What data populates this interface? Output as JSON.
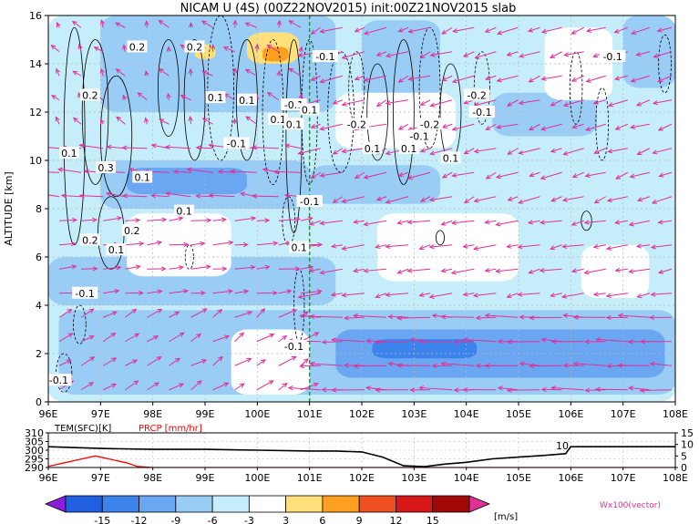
{
  "chart_data": [
    {
      "type": "heatmap",
      "title": "NICAM U (4S) (00Z22NOV2015) init:00Z21NOV2015 slab",
      "ylabel": "ALTITUDE [km]",
      "xlabel": "",
      "xlim": [
        96,
        108
      ],
      "ylim": [
        0,
        16
      ],
      "x_ticks": [
        "96E",
        "97E",
        "98E",
        "99E",
        "100E",
        "101E",
        "102E",
        "103E",
        "104E",
        "105E",
        "106E",
        "107E",
        "108E"
      ],
      "y_ticks": [
        "0",
        "2",
        "4",
        "6",
        "8",
        "10",
        "12",
        "14",
        "16"
      ],
      "grid": true,
      "marker_line_lon": 101.0,
      "shaded_regions": [
        {
          "lon": [
            96.0,
            108.0
          ],
          "alt": [
            0.0,
            16.0
          ],
          "value": -4.5
        },
        {
          "lon": [
            96.2,
            108.0
          ],
          "alt": [
            0.3,
            3.8
          ],
          "value": -7.5
        },
        {
          "lon": [
            101.5,
            107.8
          ],
          "alt": [
            1.0,
            3.0
          ],
          "value": -10.5
        },
        {
          "lon": [
            102.2,
            104.2
          ],
          "alt": [
            1.8,
            2.6
          ],
          "value": -13.5
        },
        {
          "lon": [
            96.0,
            101.5
          ],
          "alt": [
            4.0,
            6.0
          ],
          "value": -7.5
        },
        {
          "lon": [
            97.0,
            101.0
          ],
          "alt": [
            8.0,
            10.0
          ],
          "value": -7.5
        },
        {
          "lon": [
            97.5,
            99.8
          ],
          "alt": [
            8.6,
            9.7
          ],
          "value": -10.5
        },
        {
          "lon": [
            101.0,
            103.5
          ],
          "alt": [
            8.2,
            9.8
          ],
          "value": -7.5
        },
        {
          "lon": [
            97.0,
            101.5
          ],
          "alt": [
            12.0,
            16.0
          ],
          "value": -7.5
        },
        {
          "lon": [
            102.0,
            103.5
          ],
          "alt": [
            12.5,
            15.8
          ],
          "value": -7.5
        },
        {
          "lon": [
            104.5,
            106.5
          ],
          "alt": [
            11.0,
            12.8
          ],
          "value": -7.5
        },
        {
          "lon": [
            107.0,
            108.0
          ],
          "alt": [
            13.0,
            16.0
          ],
          "value": -7.5
        },
        {
          "lon": [
            97.5,
            99.5
          ],
          "alt": [
            5.2,
            7.8
          ],
          "value": 0.0
        },
        {
          "lon": [
            102.3,
            105.0
          ],
          "alt": [
            5.0,
            7.8
          ],
          "value": 0.0
        },
        {
          "lon": [
            106.2,
            107.5
          ],
          "alt": [
            4.3,
            6.5
          ],
          "value": 0.0
        },
        {
          "lon": [
            101.5,
            103.8
          ],
          "alt": [
            10.5,
            12.8
          ],
          "value": 0.0
        },
        {
          "lon": [
            105.5,
            106.8
          ],
          "alt": [
            12.5,
            15.5
          ],
          "value": 0.0
        },
        {
          "lon": [
            99.5,
            101.0
          ],
          "alt": [
            0.3,
            3.0
          ],
          "value": 0.0
        },
        {
          "lon": [
            98.8,
            99.2
          ],
          "alt": [
            14.2,
            14.8
          ],
          "value": 4.5
        },
        {
          "lon": [
            99.8,
            100.8
          ],
          "alt": [
            14.0,
            15.3
          ],
          "value": 4.5
        },
        {
          "lon": [
            100.1,
            100.6
          ],
          "alt": [
            14.1,
            14.7
          ],
          "value": 7.5
        }
      ],
      "contour_labels": [
        {
          "lon": 96.8,
          "alt": 12.7,
          "text": "0.2"
        },
        {
          "lon": 97.7,
          "alt": 14.7,
          "text": "0.2"
        },
        {
          "lon": 98.8,
          "alt": 14.7,
          "text": "0.2"
        },
        {
          "lon": 96.4,
          "alt": 10.3,
          "text": "0.1"
        },
        {
          "lon": 97.1,
          "alt": 9.7,
          "text": "0.3"
        },
        {
          "lon": 97.8,
          "alt": 9.3,
          "text": "0.1"
        },
        {
          "lon": 98.6,
          "alt": 7.9,
          "text": "0.1"
        },
        {
          "lon": 96.8,
          "alt": 6.7,
          "text": "0.2"
        },
        {
          "lon": 97.6,
          "alt": 7.1,
          "text": "0.2"
        },
        {
          "lon": 97.3,
          "alt": 6.3,
          "text": "0.1"
        },
        {
          "lon": 96.7,
          "alt": 4.5,
          "text": "-0.1"
        },
        {
          "lon": 96.2,
          "alt": 0.9,
          "text": "-0.1"
        },
        {
          "lon": 99.2,
          "alt": 12.6,
          "text": "0.1"
        },
        {
          "lon": 99.8,
          "alt": 12.5,
          "text": "0.1"
        },
        {
          "lon": 100.7,
          "alt": 12.3,
          "text": "-0.1"
        },
        {
          "lon": 100.4,
          "alt": 11.7,
          "text": "0.1"
        },
        {
          "lon": 99.6,
          "alt": 10.7,
          "text": "-0.1"
        },
        {
          "lon": 101.0,
          "alt": 12.1,
          "text": "0.1"
        },
        {
          "lon": 100.7,
          "alt": 11.5,
          "text": "0.1"
        },
        {
          "lon": 101.0,
          "alt": 8.3,
          "text": "-0.1"
        },
        {
          "lon": 100.8,
          "alt": 6.4,
          "text": "0.1"
        },
        {
          "lon": 100.7,
          "alt": 2.3,
          "text": "-0.1"
        },
        {
          "lon": 101.3,
          "alt": 14.3,
          "text": "-0.1"
        },
        {
          "lon": 101.9,
          "alt": 11.5,
          "text": "-0.2"
        },
        {
          "lon": 102.2,
          "alt": 10.5,
          "text": "0.1"
        },
        {
          "lon": 102.9,
          "alt": 10.5,
          "text": "0.1"
        },
        {
          "lon": 103.3,
          "alt": 11.5,
          "text": "-0.2"
        },
        {
          "lon": 103.1,
          "alt": 11.0,
          "text": "-0.1"
        },
        {
          "lon": 103.7,
          "alt": 10.1,
          "text": "0.1"
        },
        {
          "lon": 104.2,
          "alt": 12.7,
          "text": "-0.2"
        },
        {
          "lon": 104.3,
          "alt": 12.0,
          "text": "-0.1"
        },
        {
          "lon": 106.8,
          "alt": 14.3,
          "text": "-0.1"
        }
      ],
      "vectors": {
        "color": "#e0309a",
        "label": "Wx100(vector)",
        "spacing_lon": 0.42,
        "spacing_alt": 1.0,
        "regions": [
          {
            "lon": [
              96.0,
              101.0
            ],
            "alt": [
              0.0,
              4.0
            ],
            "u": 0.4,
            "w": 1.0,
            "scale": 1.2
          },
          {
            "lon": [
              96.0,
              101.0
            ],
            "alt": [
              4.0,
              8.0
            ],
            "u": 0.7,
            "w": 0.3,
            "scale": 0.9
          },
          {
            "lon": [
              96.0,
              101.0
            ],
            "alt": [
              8.0,
              11.0
            ],
            "u": -0.8,
            "w": 0.3,
            "scale": 1.0
          },
          {
            "lon": [
              96.0,
              101.0
            ],
            "alt": [
              11.0,
              16.0
            ],
            "u": -0.2,
            "w": 1.0,
            "scale": 1.0
          },
          {
            "lon": [
              101.0,
              108.0
            ],
            "alt": [
              0.0,
              4.0
            ],
            "u": -1.0,
            "w": 0.1,
            "scale": 1.0
          },
          {
            "lon": [
              101.0,
              108.0
            ],
            "alt": [
              4.0,
              8.0
            ],
            "u": -0.7,
            "w": -0.5,
            "scale": 0.9
          },
          {
            "lon": [
              101.0,
              108.0
            ],
            "alt": [
              8.0,
              16.0
            ],
            "u": -0.6,
            "w": -0.8,
            "scale": 1.0
          }
        ]
      }
    },
    {
      "type": "line",
      "series": [
        {
          "name": "TEM(SFC)[K]",
          "color": "#000000",
          "x": [
            96,
            97,
            98,
            99,
            100,
            101,
            101.5,
            102,
            102.4,
            102.8,
            103.2,
            103.6,
            104,
            104.5,
            105,
            105.5,
            105.9,
            106.0,
            106.2,
            107,
            108
          ],
          "y": [
            302,
            301,
            300.5,
            300.5,
            300,
            299.5,
            299.5,
            299,
            296,
            291,
            290.5,
            292,
            293,
            295,
            296,
            297,
            298,
            302,
            302,
            302,
            302
          ]
        },
        {
          "name": "PRCP [mm/hr]",
          "color": "#ff0000",
          "x": [
            96,
            96.3,
            96.6,
            96.9,
            97.2,
            97.5,
            97.7,
            98,
            100,
            102,
            104,
            106,
            108
          ],
          "y": [
            0.5,
            2,
            3.5,
            5,
            3.5,
            2,
            0.5,
            0,
            0,
            0,
            0,
            0,
            0
          ]
        }
      ],
      "left_ticks": [
        "290",
        "295",
        "300",
        "305",
        "310"
      ],
      "right_ticks": [
        "0",
        "5",
        "10",
        "15"
      ],
      "annotation": "10",
      "x_ticks": [
        "96E",
        "97E",
        "98E",
        "99E",
        "100E",
        "101E",
        "102E",
        "103E",
        "104E",
        "105E",
        "106E",
        "107E",
        "108E"
      ],
      "ylim_left": [
        290,
        310
      ],
      "ylim_right": [
        0,
        15
      ]
    }
  ],
  "colorbar": {
    "labels": [
      "-15",
      "-12",
      "-9",
      "-6",
      "-3",
      "3",
      "6",
      "9",
      "12",
      "15"
    ],
    "colors": [
      "#8a1edb",
      "#2060e0",
      "#3c84ec",
      "#6aa6f2",
      "#9acdf6",
      "#c6eefa",
      "#ffffff",
      "#ffe07a",
      "#ffa020",
      "#f05020",
      "#d81818",
      "#a00808",
      "#e0309a"
    ],
    "unit": "[m/s]"
  }
}
